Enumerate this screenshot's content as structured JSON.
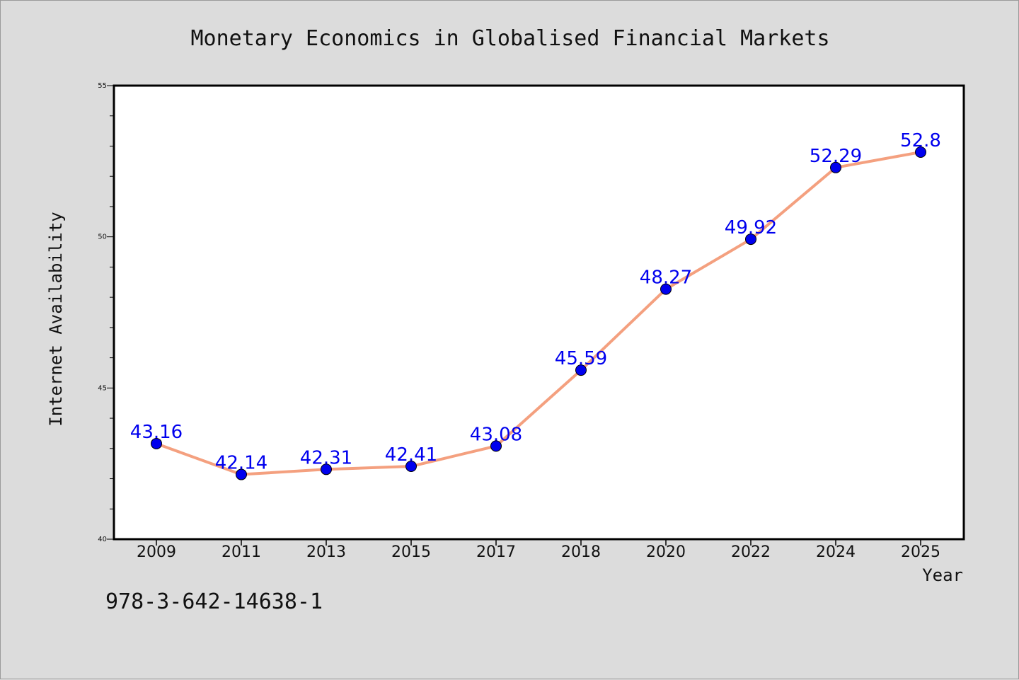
{
  "chart_data": {
    "type": "line",
    "title": "Monetary Economics in Globalised Financial Markets",
    "xlabel": "Year",
    "ylabel": "Internet Availability",
    "categories": [
      "2009",
      "2011",
      "2013",
      "2015",
      "2017",
      "2018",
      "2020",
      "2022",
      "2024",
      "2025"
    ],
    "values": [
      43.16,
      42.14,
      42.31,
      42.41,
      43.08,
      45.59,
      48.27,
      49.92,
      52.29,
      52.8
    ],
    "data_labels": [
      "43.16",
      "42.14",
      "42.31",
      "42.41",
      "43.08",
      "45.59",
      "48.27",
      "49.92",
      "52.29",
      "52.8"
    ],
    "ylim": [
      40,
      55
    ],
    "yticks_major": [
      "40",
      "45",
      "50",
      "55"
    ],
    "grid": false,
    "legend": "none",
    "colors": {
      "line": "#f4a07f",
      "marker": "#0000ee",
      "label": "#0000ee",
      "background": "#dcdcdc",
      "plot_background": "#ffffff"
    }
  },
  "footer": {
    "isbn": "978-3-642-14638-1"
  }
}
